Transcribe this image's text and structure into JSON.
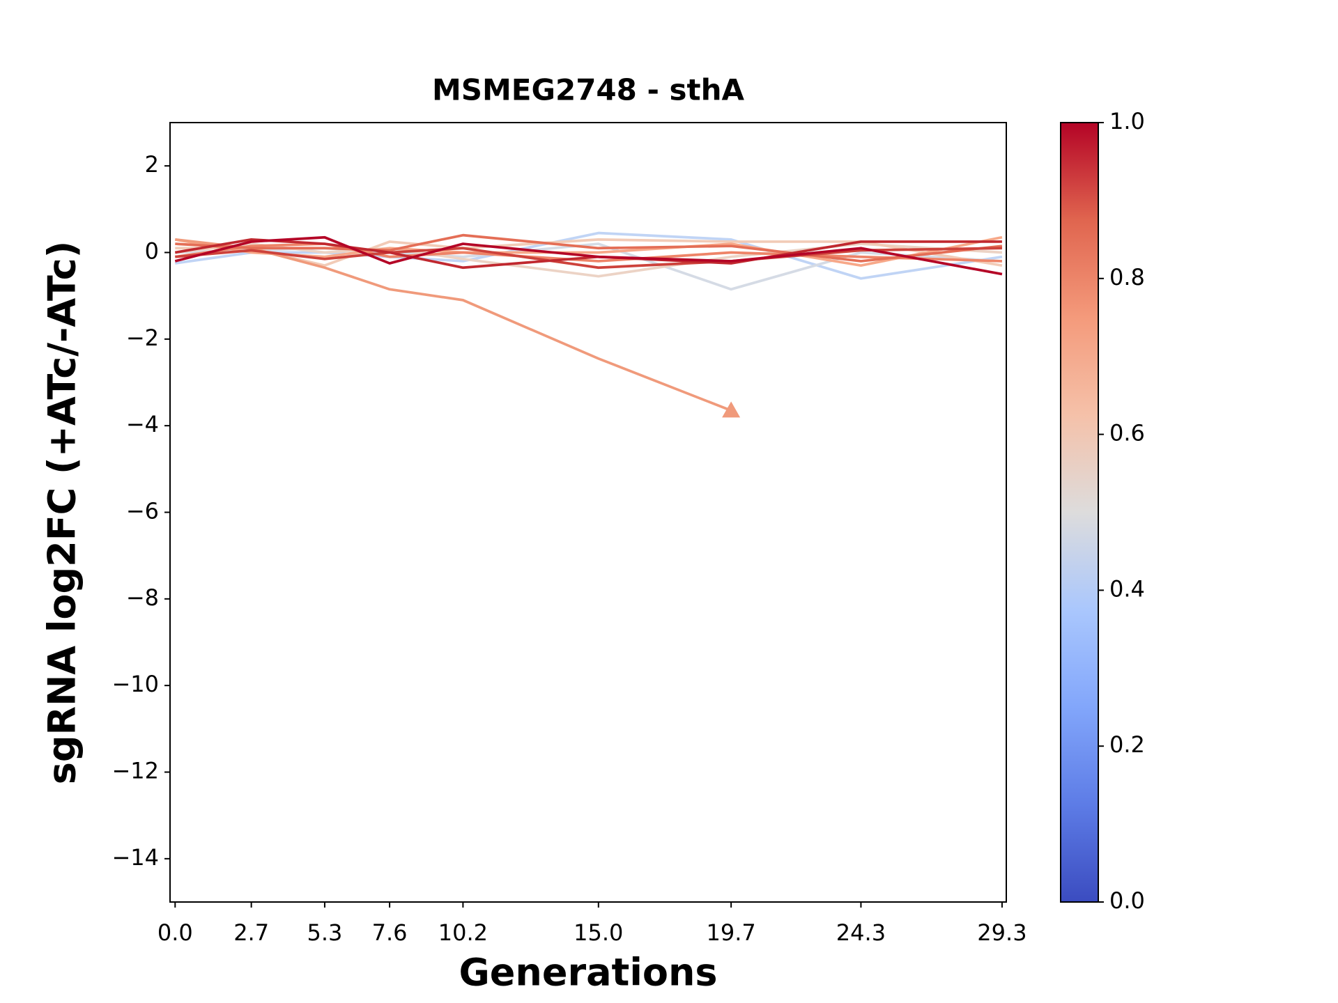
{
  "chart_data": {
    "type": "line",
    "title": "MSMEG2748 - sthA",
    "xlabel": "Generations",
    "ylabel": "sgRNA log2FC (+ATc/-ATc)",
    "x": [
      0,
      2.7,
      5.3,
      7.6,
      10.2,
      15.0,
      19.7,
      24.3,
      29.3
    ],
    "xlim": [
      -0.18,
      29.45
    ],
    "xticks": [
      {
        "value": 0,
        "label": "0.0"
      },
      2.7,
      5.3,
      7.6,
      10.2,
      {
        "value": 15,
        "label": "15.0"
      },
      19.7,
      24.3,
      29.3
    ],
    "ylim": [
      -15,
      3
    ],
    "yticks": [
      {
        "value": -14,
        "label": "−14"
      },
      {
        "value": -12,
        "label": "−12"
      },
      {
        "value": -10,
        "label": "−10"
      },
      {
        "value": -8,
        "label": "−8"
      },
      {
        "value": -6,
        "label": "−6"
      },
      {
        "value": -4,
        "label": "−4"
      },
      {
        "value": -2,
        "label": "−2"
      },
      0,
      2
    ],
    "colorbar": {
      "lim": [
        0,
        1
      ],
      "ticks": [
        {
          "value": 0,
          "label": "0.0"
        },
        0.2,
        0.4,
        0.6,
        0.8,
        {
          "value": 1,
          "label": "1.0"
        }
      ]
    },
    "series": [
      {
        "color": "#c0d4f5",
        "values": [
          -0.25,
          0.0,
          0.0,
          -0.1,
          -0.2,
          0.45,
          0.3,
          -0.6,
          -0.1
        ]
      },
      {
        "color": "#d5dbe5",
        "values": [
          0.0,
          0.05,
          0.1,
          0.0,
          -0.1,
          0.2,
          -0.85,
          0.0,
          -0.2
        ]
      },
      {
        "color": "#ecd3c5",
        "values": [
          0.0,
          0.2,
          0.0,
          0.1,
          -0.15,
          -0.55,
          -0.1,
          0.2,
          0.0
        ]
      },
      {
        "color": "#f2cbb7",
        "values": [
          0.1,
          0.1,
          -0.3,
          0.25,
          0.1,
          0.3,
          0.25,
          0.25,
          -0.3
        ]
      },
      {
        "color": "#f7a889",
        "values": [
          0.3,
          0.0,
          -0.1,
          0.1,
          0.0,
          0.0,
          0.2,
          -0.3,
          0.35
        ]
      },
      {
        "color": "#f09a7b",
        "values": [
          0.3,
          0.1,
          -0.35,
          -0.85,
          -1.1,
          -2.45,
          -3.65,
          null,
          null
        ],
        "end_marker": "triangle"
      },
      {
        "color": "#ee8468",
        "values": [
          -0.1,
          0.15,
          0.2,
          -0.1,
          0.0,
          -0.2,
          0.0,
          -0.1,
          -0.2
        ]
      },
      {
        "color": "#e46e56",
        "values": [
          0.2,
          0.1,
          0.1,
          0.05,
          0.4,
          0.1,
          0.15,
          -0.2,
          0.15
        ]
      },
      {
        "color": "#cd423b",
        "values": [
          -0.1,
          0.05,
          -0.15,
          0.0,
          0.1,
          -0.35,
          -0.2,
          0.05,
          0.1
        ]
      },
      {
        "color": "#c0282f",
        "values": [
          0.0,
          0.3,
          0.2,
          0.0,
          -0.35,
          -0.1,
          -0.25,
          0.25,
          0.25
        ]
      },
      {
        "color": "#b40426",
        "values": [
          -0.2,
          0.25,
          0.35,
          -0.25,
          0.2,
          -0.1,
          -0.2,
          0.1,
          -0.5
        ]
      }
    ]
  }
}
